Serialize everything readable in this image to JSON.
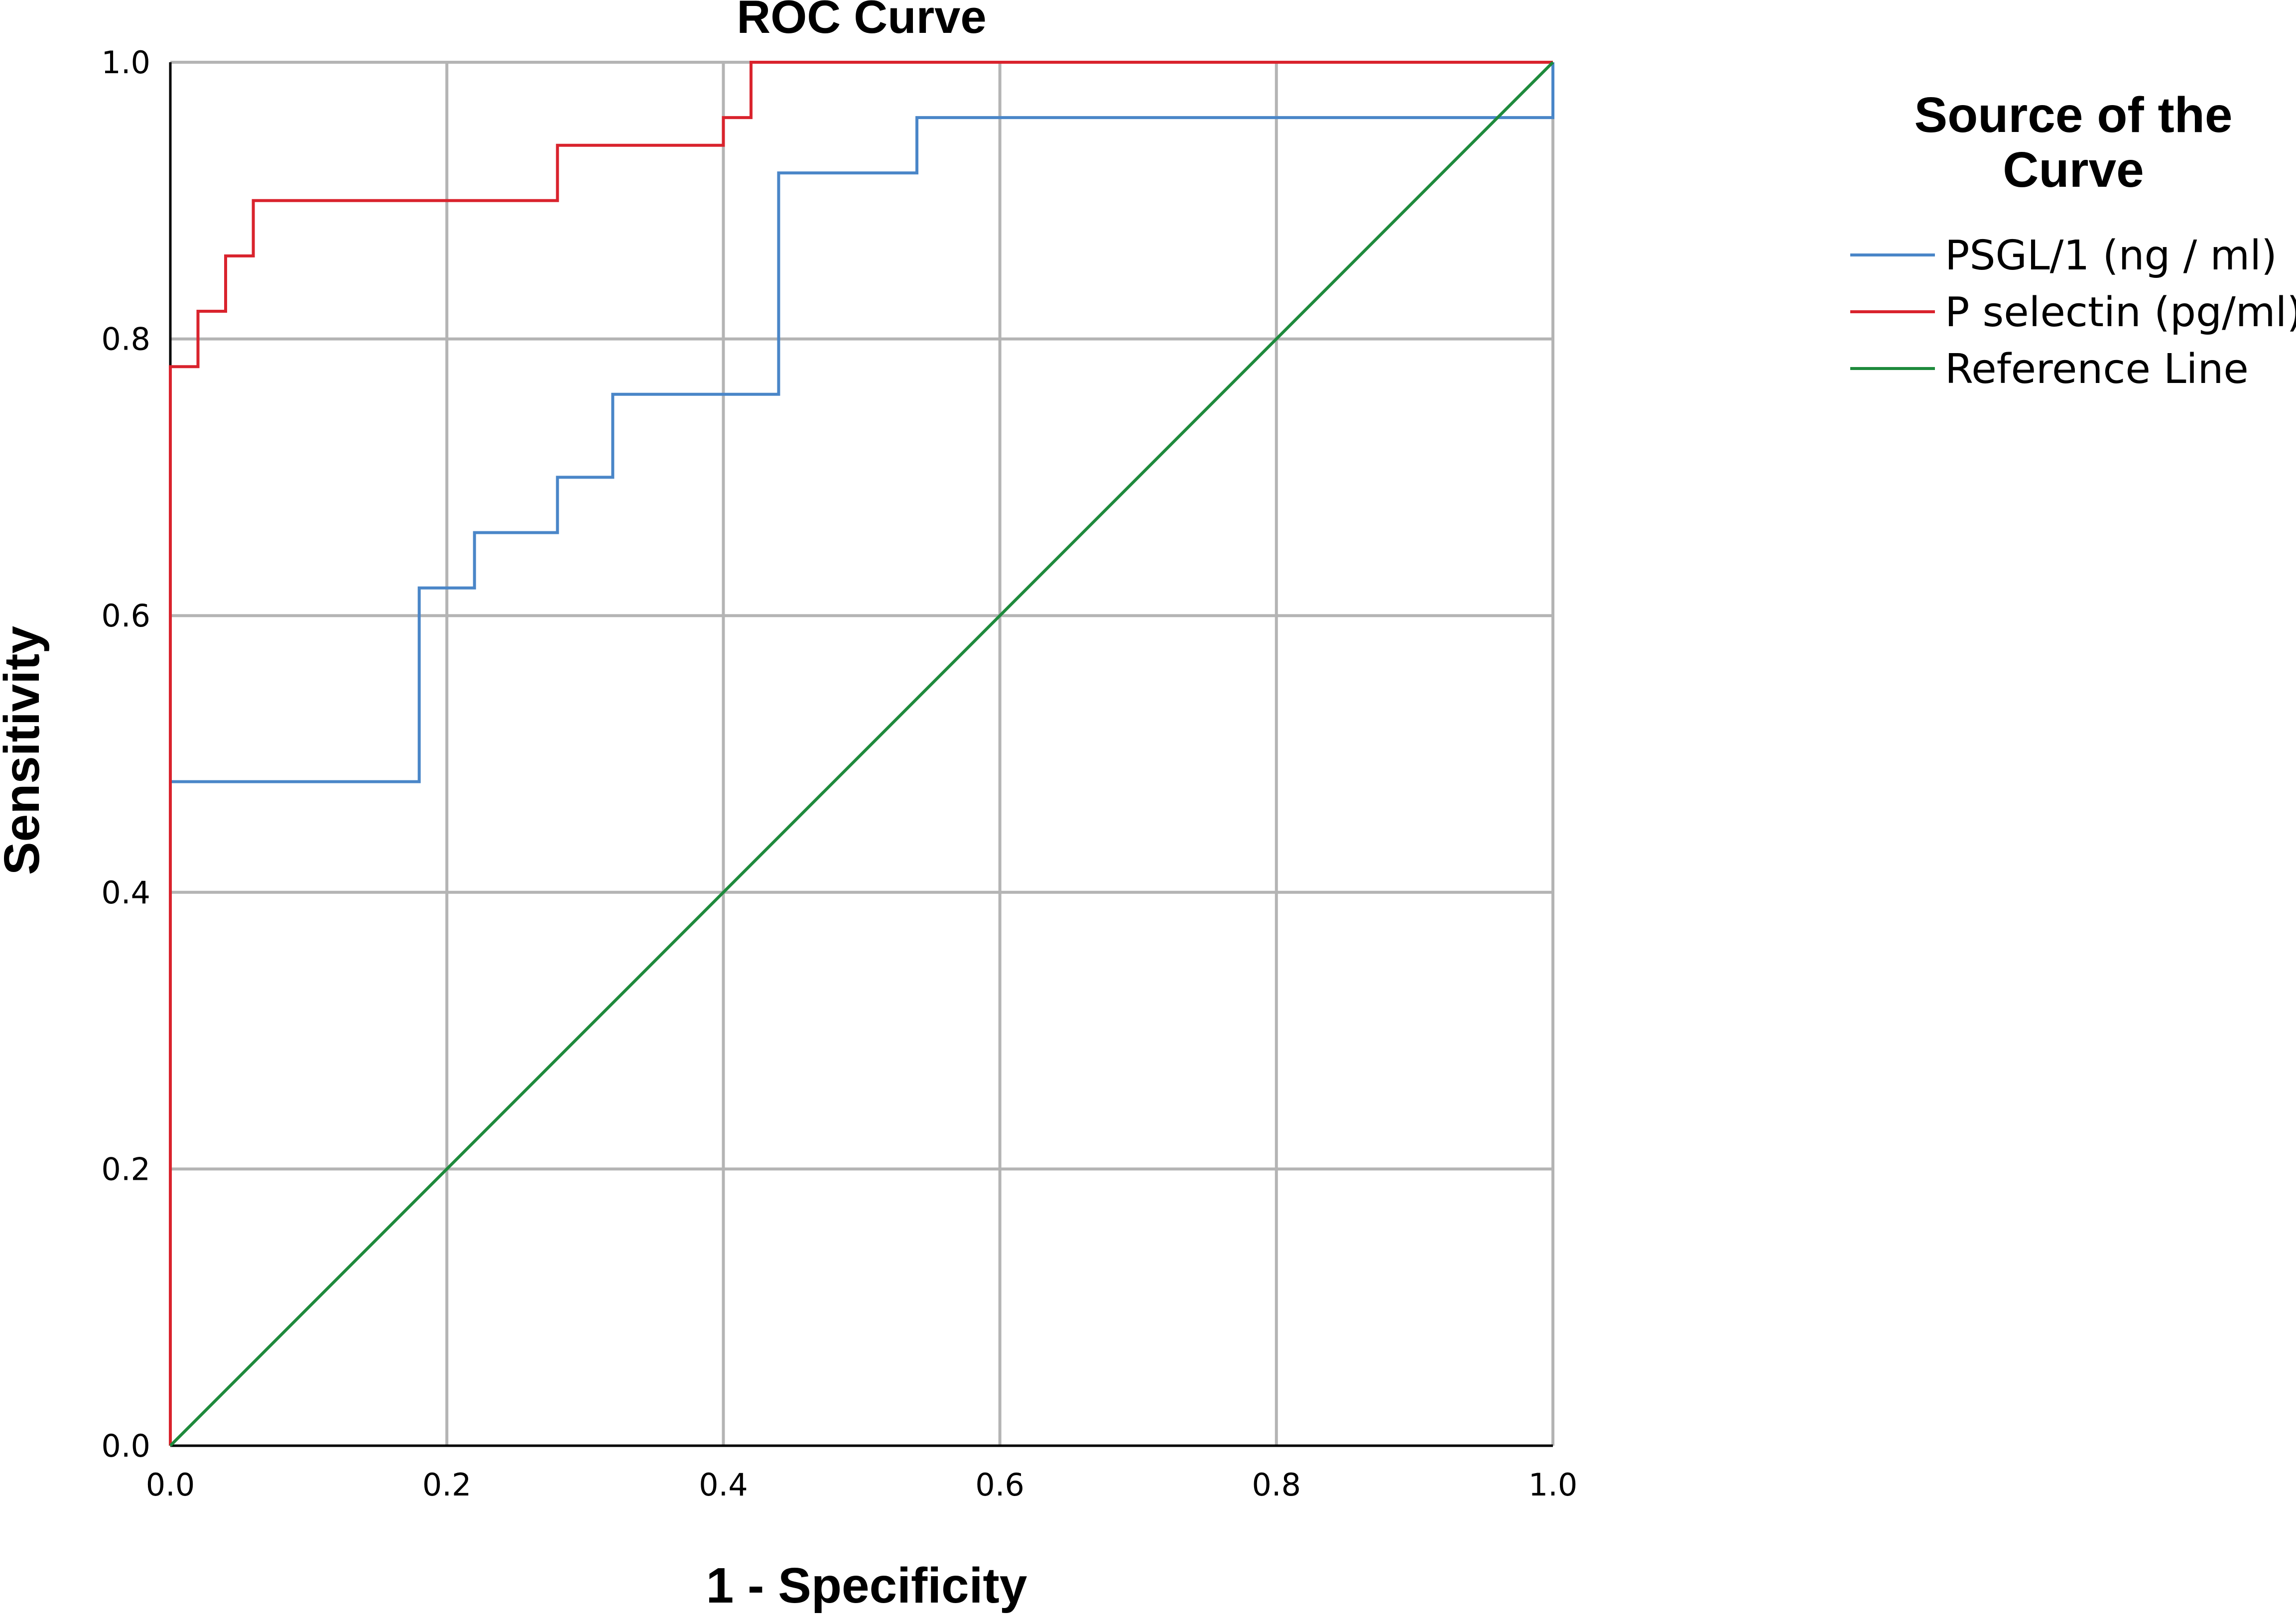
{
  "chart_data": {
    "type": "line",
    "title": "ROC Curve",
    "xlabel": "1 - Specificity",
    "ylabel": "Sensitivity",
    "xlim": [
      0,
      1
    ],
    "ylim": [
      0,
      1
    ],
    "xticks": [
      "0.0",
      "0.2",
      "0.4",
      "0.6",
      "0.8",
      "1.0"
    ],
    "yticks": [
      "0.0",
      "0.2",
      "0.4",
      "0.6",
      "0.8",
      "1.0"
    ],
    "grid": true,
    "legend": {
      "title_lines": [
        "Source of the",
        "Curve"
      ],
      "placement": "right"
    },
    "series": [
      {
        "name": "PSGL/1 (ng / ml)",
        "color": "#4a86c8",
        "style": "step",
        "points": [
          [
            0,
            0
          ],
          [
            0,
            0.48
          ],
          [
            0.18,
            0.48
          ],
          [
            0.18,
            0.62
          ],
          [
            0.22,
            0.62
          ],
          [
            0.22,
            0.66
          ],
          [
            0.28,
            0.66
          ],
          [
            0.28,
            0.7
          ],
          [
            0.32,
            0.7
          ],
          [
            0.32,
            0.76
          ],
          [
            0.44,
            0.76
          ],
          [
            0.44,
            0.92
          ],
          [
            0.54,
            0.92
          ],
          [
            0.54,
            0.96
          ],
          [
            1.0,
            0.96
          ],
          [
            1.0,
            1.0
          ]
        ]
      },
      {
        "name": "P selectin (pg/ml)",
        "color": "#d9232d",
        "style": "step",
        "points": [
          [
            0,
            0
          ],
          [
            0,
            0.78
          ],
          [
            0.02,
            0.78
          ],
          [
            0.02,
            0.82
          ],
          [
            0.04,
            0.82
          ],
          [
            0.04,
            0.86
          ],
          [
            0.06,
            0.86
          ],
          [
            0.06,
            0.9
          ],
          [
            0.28,
            0.9
          ],
          [
            0.28,
            0.94
          ],
          [
            0.4,
            0.94
          ],
          [
            0.4,
            0.96
          ],
          [
            0.42,
            0.96
          ],
          [
            0.42,
            1.0
          ],
          [
            1.0,
            1.0
          ]
        ]
      },
      {
        "name": "Reference Line",
        "color": "#1e8a3c",
        "style": "line",
        "points": [
          [
            0,
            0
          ],
          [
            1,
            1
          ]
        ]
      }
    ]
  }
}
